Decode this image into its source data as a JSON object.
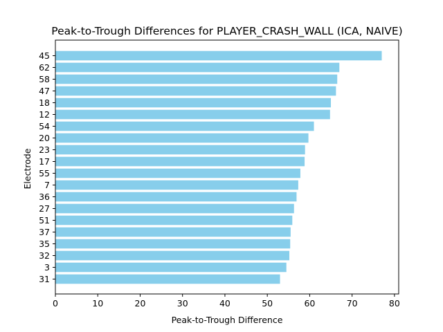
{
  "chart_data": {
    "type": "bar",
    "orientation": "horizontal",
    "title": "Peak-to-Trough Differences for PLAYER_CRASH_WALL (ICA, NAIVE)",
    "xlabel": "Peak-to-Trough Difference",
    "ylabel": "Electrode",
    "categories": [
      "45",
      "62",
      "58",
      "47",
      "18",
      "12",
      "54",
      "20",
      "23",
      "17",
      "55",
      "7",
      "36",
      "27",
      "51",
      "37",
      "35",
      "32",
      "3",
      "31"
    ],
    "values": [
      77.0,
      67.0,
      66.5,
      66.2,
      65.0,
      64.8,
      61.0,
      59.7,
      58.9,
      58.8,
      57.8,
      57.3,
      56.9,
      56.3,
      55.9,
      55.5,
      55.4,
      55.2,
      54.5,
      53.0
    ],
    "xlim": [
      0,
      81
    ],
    "xticks": [
      0,
      10,
      20,
      30,
      40,
      50,
      60,
      70,
      80
    ],
    "grid": false,
    "bar_color": "#87CEEB"
  }
}
